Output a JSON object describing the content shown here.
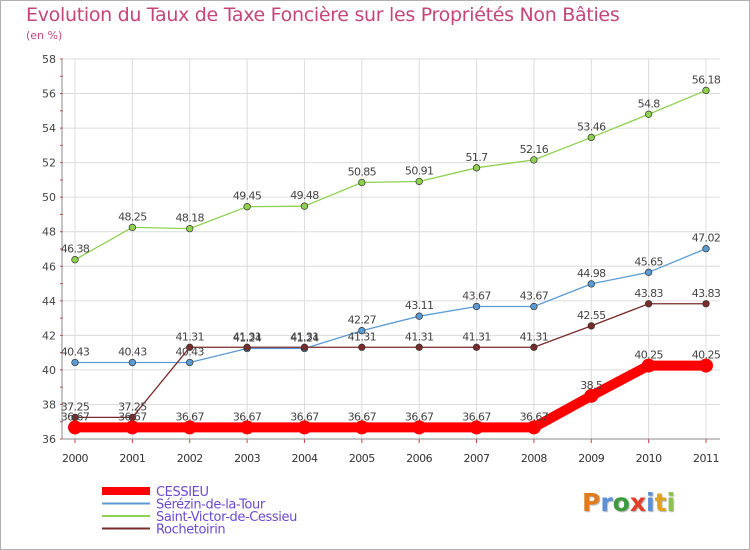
{
  "title": "Evolution du Taux de Taxe Foncière sur les Propriétés Non Bâties",
  "unit_label": "(en %)",
  "logo": {
    "text": "Proxiti",
    "colors": [
      "#e07b1e",
      "#5b8fd6",
      "#3e9a3e",
      "#e0402a",
      "#5b8fd6",
      "#e0a020",
      "#8bc34a"
    ]
  },
  "chart_data": {
    "type": "line",
    "title": "Evolution du Taux de Taxe Foncière sur les Propriétés Non Bâties",
    "ylabel": "(en %)",
    "xlabel": "",
    "x": [
      "2000",
      "2001",
      "2002",
      "2003",
      "2004",
      "2005",
      "2006",
      "2007",
      "2008",
      "2009",
      "2010",
      "2011"
    ],
    "ylim": [
      36,
      58
    ],
    "yticks": [
      36,
      38,
      40,
      42,
      44,
      46,
      48,
      50,
      52,
      54,
      56,
      58
    ],
    "grid": true,
    "legend_position": "bottom-left",
    "series": [
      {
        "name": "CESSIEU",
        "color": "#ff0000",
        "values": [
          36.67,
          36.67,
          36.67,
          36.67,
          36.67,
          36.67,
          36.67,
          36.67,
          36.67,
          38.5,
          40.25,
          40.25
        ],
        "labels": [
          "36.67",
          "36.67",
          "36.67",
          "36.67",
          "36.67",
          "36.67",
          "36.67",
          "36.67",
          "36.67",
          "38.5",
          "40.25",
          "40.25"
        ]
      },
      {
        "name": "Sérézin-de-la-Tour",
        "color": "#5b9bd5",
        "values": [
          40.43,
          40.43,
          40.43,
          41.24,
          41.24,
          42.27,
          43.11,
          43.67,
          43.67,
          44.98,
          45.65,
          47.02
        ],
        "labels": [
          "40.43",
          "40.43",
          "40.43",
          "41.24",
          "41.24",
          "42.27",
          "43.11",
          "43.67",
          "43.67",
          "44.98",
          "45.65",
          "47.02"
        ]
      },
      {
        "name": "Saint-Victor-de-Cessieu",
        "color": "#8fd14f",
        "values": [
          46.38,
          48.25,
          48.18,
          49.45,
          49.48,
          50.85,
          50.91,
          51.7,
          52.16,
          53.46,
          54.8,
          56.18
        ],
        "labels": [
          "46.38",
          "48.25",
          "48.18",
          "49.45",
          "49.48",
          "50.85",
          "50.91",
          "51.7",
          "52.16",
          "53.46",
          "54.8",
          "56.18"
        ]
      },
      {
        "name": "Rochetoirin",
        "color": "#7a2b2b",
        "values": [
          37.25,
          37.25,
          41.31,
          41.31,
          41.31,
          41.31,
          41.31,
          41.31,
          41.31,
          42.55,
          43.83,
          43.83
        ],
        "labels": [
          "37.25",
          "37.25",
          "41.31",
          "41.31",
          "41.31",
          "41.31",
          "41.31",
          "41.31",
          "41.31",
          "42.55",
          "43.83",
          "43.83"
        ]
      }
    ]
  }
}
